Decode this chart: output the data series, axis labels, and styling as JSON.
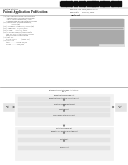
{
  "bg_color": "#ffffff",
  "light_gray": "#eeeeee",
  "mid_gray": "#cccccc",
  "dark_gray": "#888888",
  "box_fill": "#e4e4e4",
  "inner_fill": "#f2f2f2",
  "text_dark": "#222222",
  "text_mid": "#555555",
  "barcode_color": "#111111",
  "divider_color": "#999999",
  "header_bg": "#f7f7f7",
  "abstract_bg": "#e0e0e0"
}
